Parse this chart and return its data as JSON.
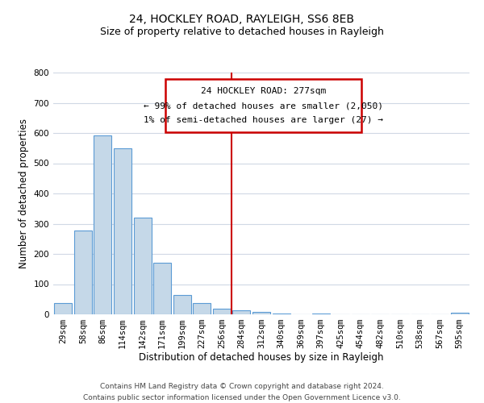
{
  "title": "24, HOCKLEY ROAD, RAYLEIGH, SS6 8EB",
  "subtitle": "Size of property relative to detached houses in Rayleigh",
  "xlabel": "Distribution of detached houses by size in Rayleigh",
  "ylabel": "Number of detached properties",
  "bar_labels": [
    "29sqm",
    "58sqm",
    "86sqm",
    "114sqm",
    "142sqm",
    "171sqm",
    "199sqm",
    "227sqm",
    "256sqm",
    "284sqm",
    "312sqm",
    "340sqm",
    "369sqm",
    "397sqm",
    "425sqm",
    "454sqm",
    "482sqm",
    "510sqm",
    "538sqm",
    "567sqm",
    "595sqm"
  ],
  "bar_values": [
    38,
    278,
    592,
    550,
    320,
    170,
    65,
    38,
    20,
    13,
    8,
    3,
    0,
    2,
    0,
    0,
    0,
    0,
    0,
    0,
    5
  ],
  "bar_color": "#c5d8e8",
  "bar_edge_color": "#5b9bd5",
  "vline_color": "#cc0000",
  "vline_pos": 8.5,
  "ylim": [
    0,
    800
  ],
  "yticks": [
    0,
    100,
    200,
    300,
    400,
    500,
    600,
    700,
    800
  ],
  "annotation_box_text_line1": "24 HOCKLEY ROAD: 277sqm",
  "annotation_box_text_line2": "← 99% of detached houses are smaller (2,050)",
  "annotation_box_text_line3": "1% of semi-detached houses are larger (27) →",
  "annotation_box_color": "#cc0000",
  "footer_line1": "Contains HM Land Registry data © Crown copyright and database right 2024.",
  "footer_line2": "Contains public sector information licensed under the Open Government Licence v3.0.",
  "bg_color": "#ffffff",
  "grid_color": "#d0d8e4",
  "title_fontsize": 10,
  "subtitle_fontsize": 9,
  "axis_label_fontsize": 8.5,
  "tick_fontsize": 7.5,
  "annotation_fontsize": 8,
  "footer_fontsize": 6.5
}
